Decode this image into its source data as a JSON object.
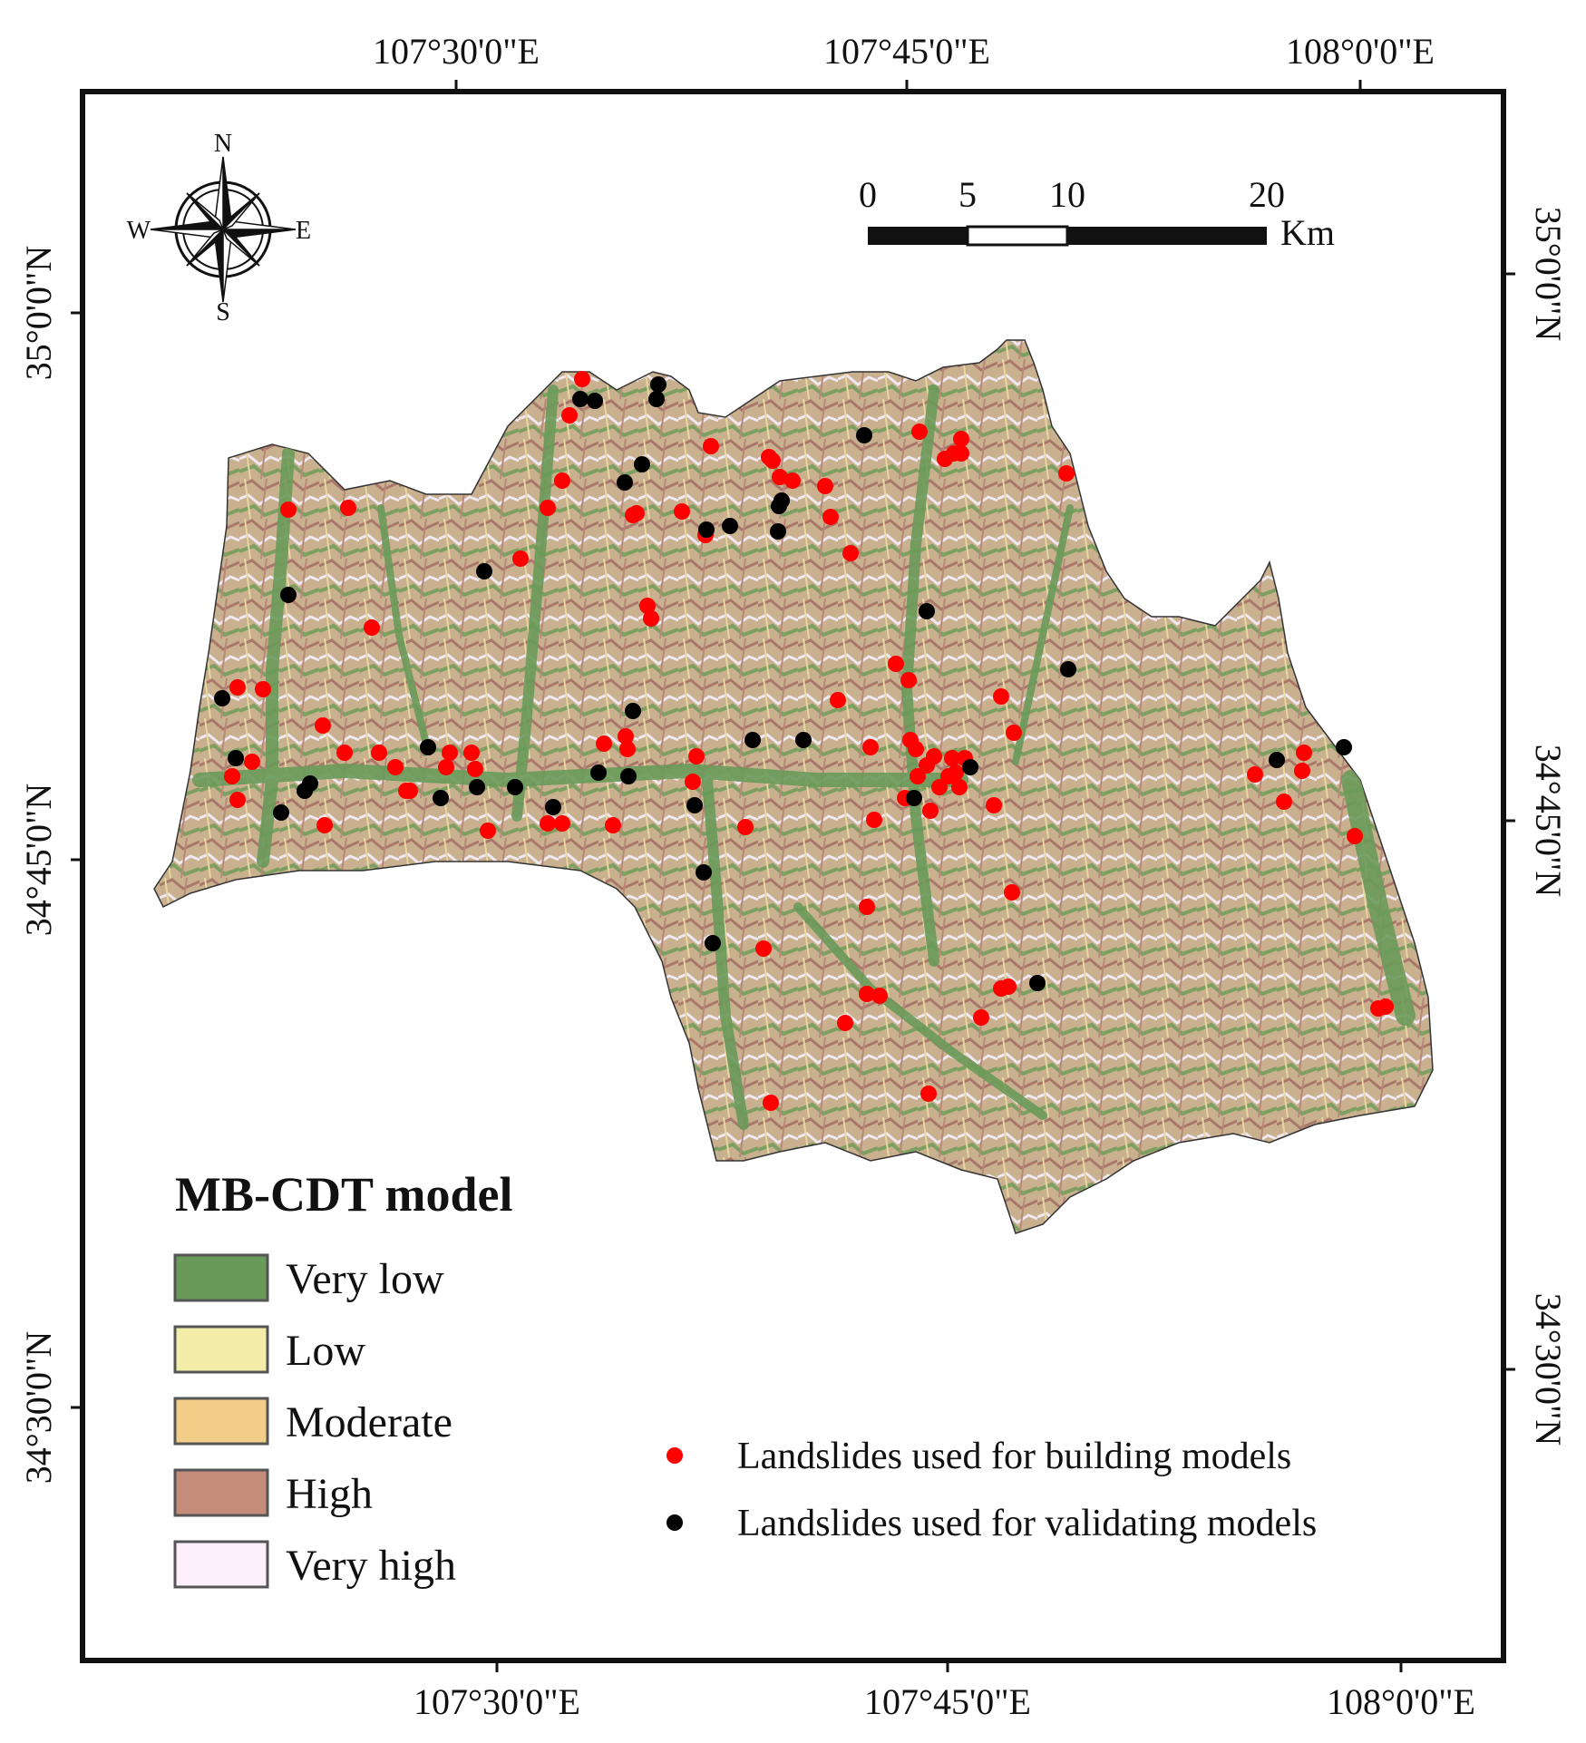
{
  "map": {
    "legend_title": "MB-CDT model",
    "susceptibility_classes": [
      {
        "label": "Very low",
        "color": "#6a9a5a"
      },
      {
        "label": "Low",
        "color": "#f2eeaa"
      },
      {
        "label": "Moderate",
        "color": "#f2cd88"
      },
      {
        "label": "High",
        "color": "#c68c7a"
      },
      {
        "label": "Very high",
        "color": "#fdf0fa"
      }
    ],
    "point_legend": [
      {
        "label": "Landslides used for building models",
        "color": "#ff0000"
      },
      {
        "label": "Landslides used for validating models",
        "color": "#000000"
      }
    ],
    "top_ticks": [
      "107°30'0\"E",
      "107°45'0\"E",
      "108°0'0\"E"
    ],
    "bottom_ticks": [
      "107°30'0\"E",
      "107°45'0\"E",
      "108°0'0\"E"
    ],
    "left_ticks": [
      "35°0'0\"N",
      "34°45'0\"N",
      "34°30'0\"N"
    ],
    "right_ticks": [
      "35°0'0\"N",
      "34°45'0\"N",
      "34°30'0\"N"
    ],
    "scale_bar": {
      "ticks": [
        "0",
        "5",
        "10",
        "20"
      ],
      "unit": "Km"
    },
    "compass": {
      "n": "N",
      "s": "S",
      "e": "E",
      "w": "W"
    }
  }
}
